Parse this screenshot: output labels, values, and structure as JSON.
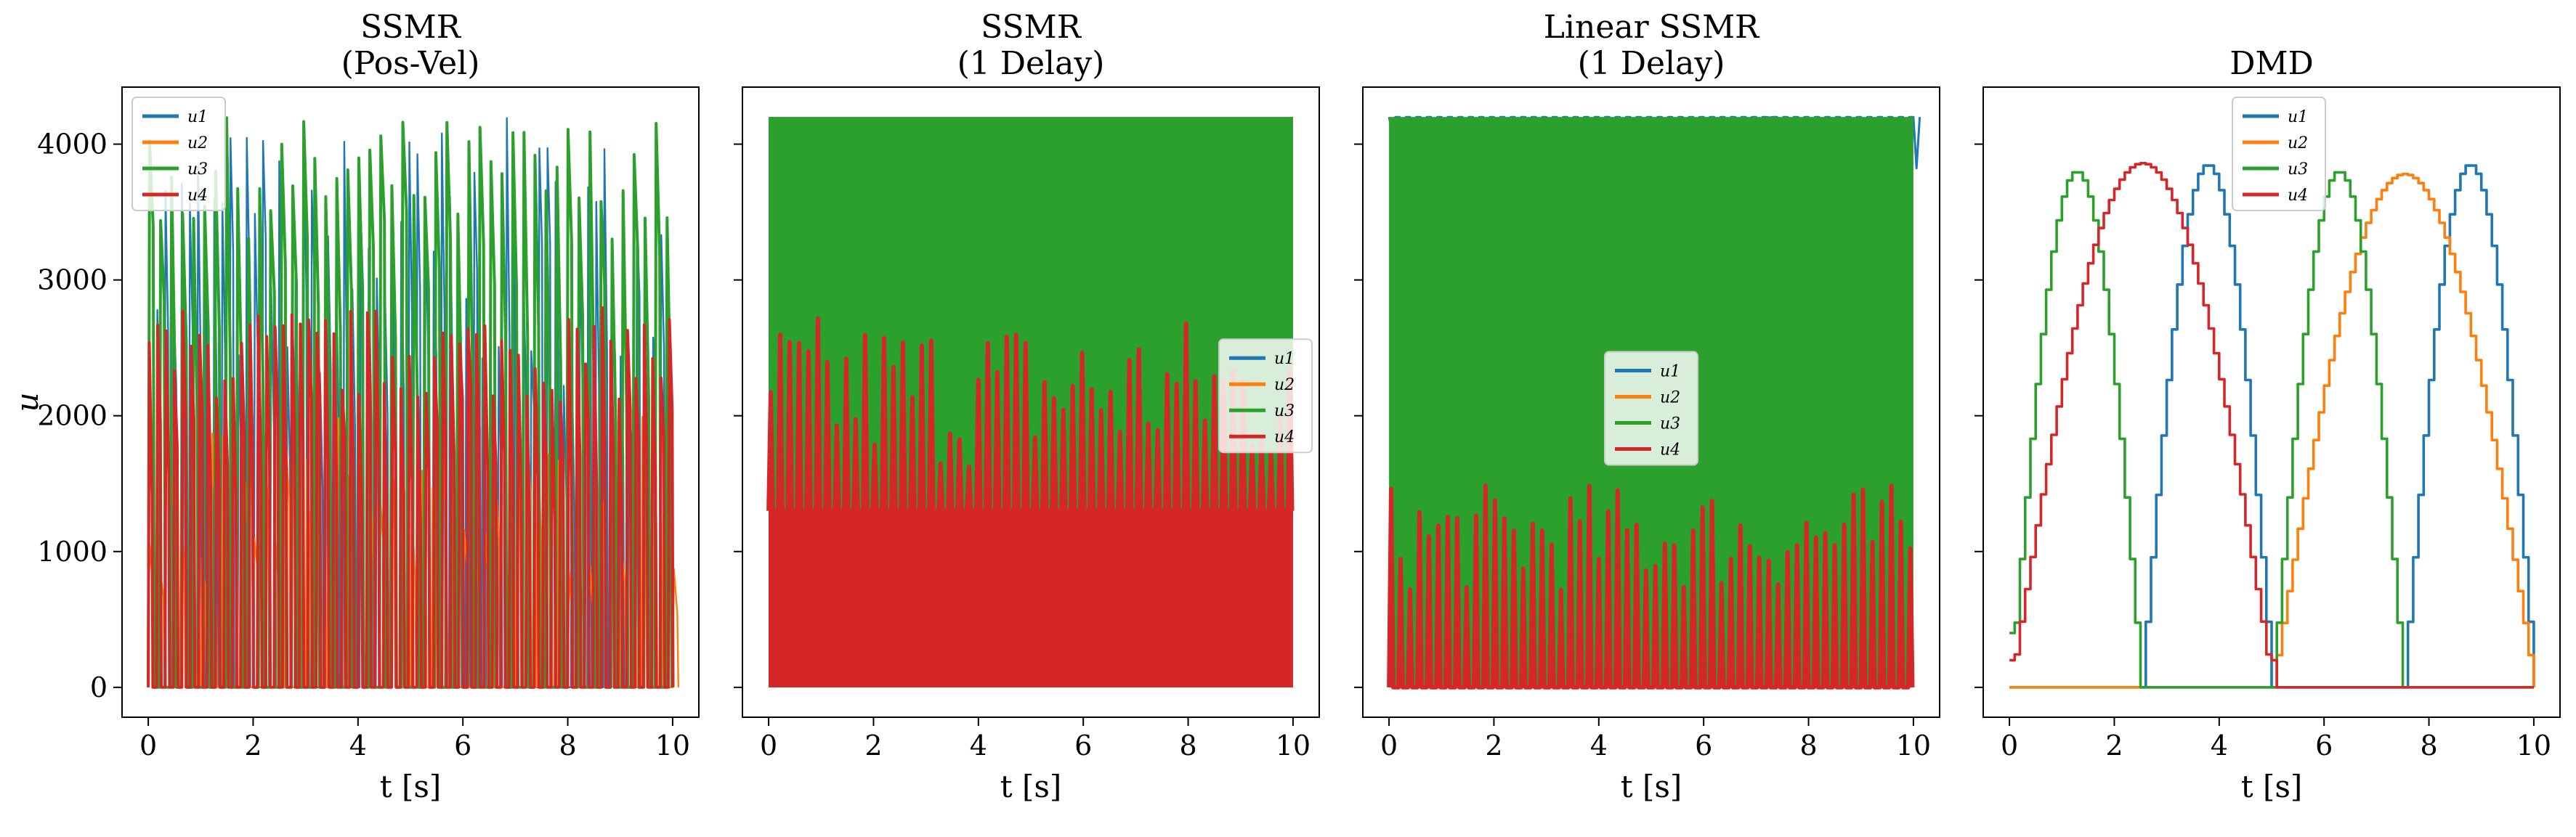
{
  "figure": {
    "ylabel": "u",
    "legend_entries": [
      "u1",
      "u2",
      "u3",
      "u4"
    ],
    "colors": {
      "u1": "#1f77b4",
      "u2": "#ff7f0e",
      "u3": "#2ca02c",
      "u4": "#d62728"
    }
  },
  "chart_data": [
    {
      "type": "line",
      "title": [
        "SSMR",
        "(Pos-Vel)"
      ],
      "xlabel": "t [s]",
      "ylabel": "u",
      "xlim": [
        -0.5,
        10.5
      ],
      "ylim": [
        -220,
        4420
      ],
      "xticks": [
        0,
        2,
        4,
        6,
        8,
        10
      ],
      "yticks": [
        0,
        1000,
        2000,
        3000,
        4000
      ],
      "legend_position": "upper-left",
      "grid": false,
      "pattern": "dense-pulse",
      "series": [
        {
          "name": "u1",
          "period": 0.155,
          "peak_range": [
            2200,
            4200
          ],
          "dominant": false
        },
        {
          "name": "u2",
          "period": 0.2,
          "peak_range": [
            800,
            2000
          ],
          "dominant": false
        },
        {
          "name": "u3",
          "period": 0.21,
          "peak_range": [
            3300,
            4200
          ],
          "dominant": true
        },
        {
          "name": "u4",
          "period": 0.16,
          "peak_range": [
            2100,
            2800
          ],
          "dominant": true
        }
      ]
    },
    {
      "type": "line",
      "title": [
        "SSMR",
        "(1 Delay)"
      ],
      "xlabel": "t [s]",
      "xlim": [
        -0.5,
        10.5
      ],
      "ylim": [
        -220,
        4420
      ],
      "xticks": [
        0,
        2,
        4,
        6,
        8,
        10
      ],
      "yticks": [
        0,
        1000,
        2000,
        3000,
        4000
      ],
      "legend_position": "center-right",
      "grid": false,
      "pattern": "saturated-band",
      "series": [
        {
          "name": "u1",
          "band": [
            0,
            4200
          ]
        },
        {
          "name": "u2",
          "band": [
            0,
            1500
          ]
        },
        {
          "name": "u3",
          "band": [
            0,
            4200
          ]
        },
        {
          "name": "u4",
          "band": [
            0,
            1300
          ],
          "spike_range": [
            1600,
            2750
          ]
        }
      ]
    },
    {
      "type": "line",
      "title": [
        "Linear SSMR",
        "(1 Delay)"
      ],
      "xlabel": "t [s]",
      "xlim": [
        -0.5,
        10.5
      ],
      "ylim": [
        -220,
        4420
      ],
      "xticks": [
        0,
        2,
        4,
        6,
        8,
        10
      ],
      "yticks": [
        0,
        1000,
        2000,
        3000,
        4000
      ],
      "legend_position": "center",
      "grid": false,
      "pattern": "saturated-band",
      "series": [
        {
          "name": "u1",
          "period": 0.2,
          "peak_range": [
            3300,
            4200
          ]
        },
        {
          "name": "u2",
          "band": [
            0,
            600
          ]
        },
        {
          "name": "u3",
          "band": [
            0,
            4200
          ]
        },
        {
          "name": "u4",
          "band": [
            0,
            0
          ],
          "spike_range": [
            700,
            1500
          ]
        }
      ]
    },
    {
      "type": "line",
      "title": [
        "DMD"
      ],
      "xlabel": "t [s]",
      "xlim": [
        -0.5,
        10.5
      ],
      "ylim": [
        -220,
        4420
      ],
      "xticks": [
        0,
        2,
        4,
        6,
        8,
        10
      ],
      "yticks": [
        0,
        1000,
        2000,
        3000,
        4000
      ],
      "legend_position": "upper-center",
      "grid": false,
      "pattern": "staircase-sine",
      "series": [
        {
          "name": "u1",
          "active": [
            [
              2.5,
              5.0
            ],
            [
              7.5,
              10.0
            ]
          ],
          "peak": 3850,
          "start": 0
        },
        {
          "name": "u2",
          "active": [
            [
              5.0,
              10.0
            ]
          ],
          "peak": 3780,
          "start": 0
        },
        {
          "name": "u3",
          "active": [
            [
              0.0,
              2.5
            ],
            [
              5.0,
              7.5
            ]
          ],
          "peak": 3800,
          "start": 400
        },
        {
          "name": "u4",
          "active": [
            [
              0.0,
              5.0
            ]
          ],
          "peak": 3860,
          "start": 200
        }
      ]
    }
  ]
}
